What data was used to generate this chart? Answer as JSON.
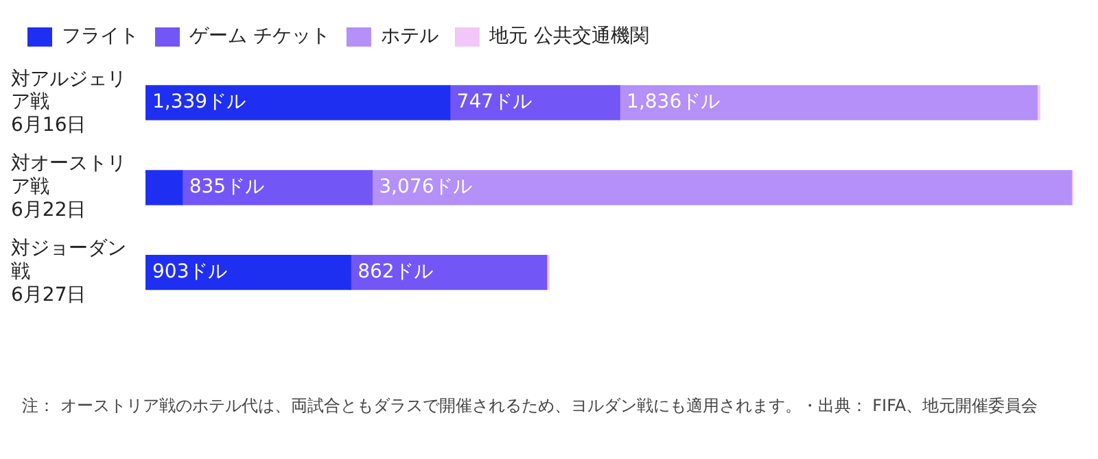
{
  "chart_data": {
    "type": "bar",
    "orientation": "horizontal",
    "stacked": true,
    "legend": "top left",
    "categories": [
      "対アルジェリア戦 6月16日",
      "対オーストリア戦 6月22日",
      "対ジョーダン戦 6月27日"
    ],
    "series": [
      {
        "name": "フライト",
        "color": "#1f2ff2",
        "values": [
          1339,
          162,
          903
        ],
        "value_labels": [
          "1,339ドル",
          null,
          "903ドル"
        ]
      },
      {
        "name": "ゲーム チケット",
        "color": "#7257f6",
        "values": [
          747,
          835,
          862
        ],
        "value_labels": [
          "747ドル",
          "835ドル",
          "862ドル"
        ]
      },
      {
        "name": "ホテル",
        "color": "#b490f8",
        "values": [
          1836,
          3076,
          null
        ],
        "value_labels": [
          "1,836ドル",
          "3,076ドル",
          null
        ]
      },
      {
        "name": "地元 公共交通機関",
        "color": "#f2c6f8",
        "values": [
          12,
          8,
          10
        ],
        "value_labels": [
          null,
          null,
          null
        ]
      }
    ],
    "annotations": [
      "注： オーストリア戦のホテル代は、両試合ともダラスで開催されるため、ヨルダン戦にも適用されます。・出典： FIFA、地元開催委員会"
    ]
  }
}
